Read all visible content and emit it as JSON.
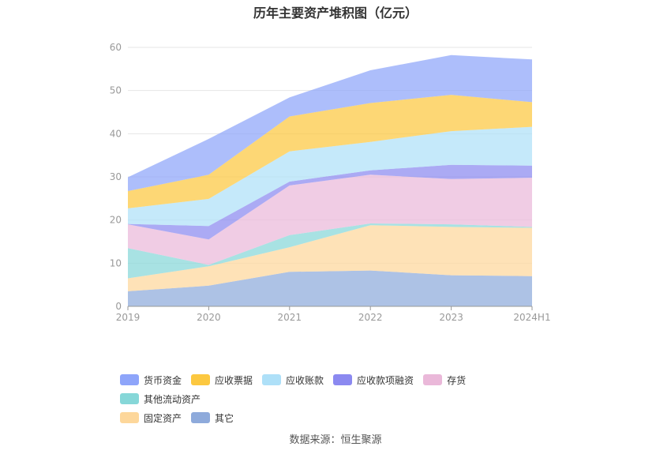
{
  "chart_data": {
    "type": "area",
    "stacked": true,
    "title": "历年主要资产堆积图（亿元）",
    "categories": [
      "2019",
      "2020",
      "2021",
      "2022",
      "2023",
      "2024H1"
    ],
    "ylim": [
      0,
      60
    ],
    "yticks": [
      0,
      10,
      20,
      30,
      40,
      50,
      60
    ],
    "grid": true,
    "legend_position": "bottom",
    "series": [
      {
        "name": "其它",
        "color": "#8eaadb",
        "values": [
          3.5,
          4.8,
          8.0,
          8.3,
          7.2,
          7.0
        ]
      },
      {
        "name": "固定资产",
        "color": "#fdd79b",
        "values": [
          3.0,
          4.5,
          5.7,
          10.5,
          11.2,
          11.2
        ]
      },
      {
        "name": "其他流动资产",
        "color": "#86d7d8",
        "values": [
          7.0,
          0.3,
          2.8,
          0.4,
          0.6,
          0.2
        ]
      },
      {
        "name": "存货",
        "color": "#eab8d9",
        "values": [
          5.5,
          5.9,
          11.5,
          11.3,
          10.5,
          11.4
        ]
      },
      {
        "name": "应收款项融资",
        "color": "#8b89f0",
        "values": [
          0.1,
          3.1,
          0.9,
          1.0,
          3.3,
          2.8
        ]
      },
      {
        "name": "应收账款",
        "color": "#aee0f8",
        "values": [
          3.6,
          6.3,
          7.0,
          6.6,
          7.8,
          9.0
        ]
      },
      {
        "name": "应收票据",
        "color": "#fcc840",
        "values": [
          4.0,
          5.6,
          8.1,
          9.0,
          8.4,
          5.7
        ]
      },
      {
        "name": "货币资金",
        "color": "#8ea5fa",
        "values": [
          3.2,
          8.3,
          4.4,
          7.6,
          9.2,
          9.9
        ]
      }
    ]
  },
  "legend": {
    "rows": [
      [
        {
          "label": "货币资金",
          "color": "#8ea5fa"
        },
        {
          "label": "应收票据",
          "color": "#fcc840"
        },
        {
          "label": "应收账款",
          "color": "#aee0f8"
        },
        {
          "label": "应收款项融资",
          "color": "#8b89f0"
        },
        {
          "label": "存货",
          "color": "#eab8d9"
        },
        {
          "label": "其他流动资产",
          "color": "#86d7d8"
        }
      ],
      [
        {
          "label": "固定资产",
          "color": "#fdd79b"
        },
        {
          "label": "其它",
          "color": "#8eaadb"
        }
      ]
    ]
  },
  "source": "数据来源：恒生聚源"
}
